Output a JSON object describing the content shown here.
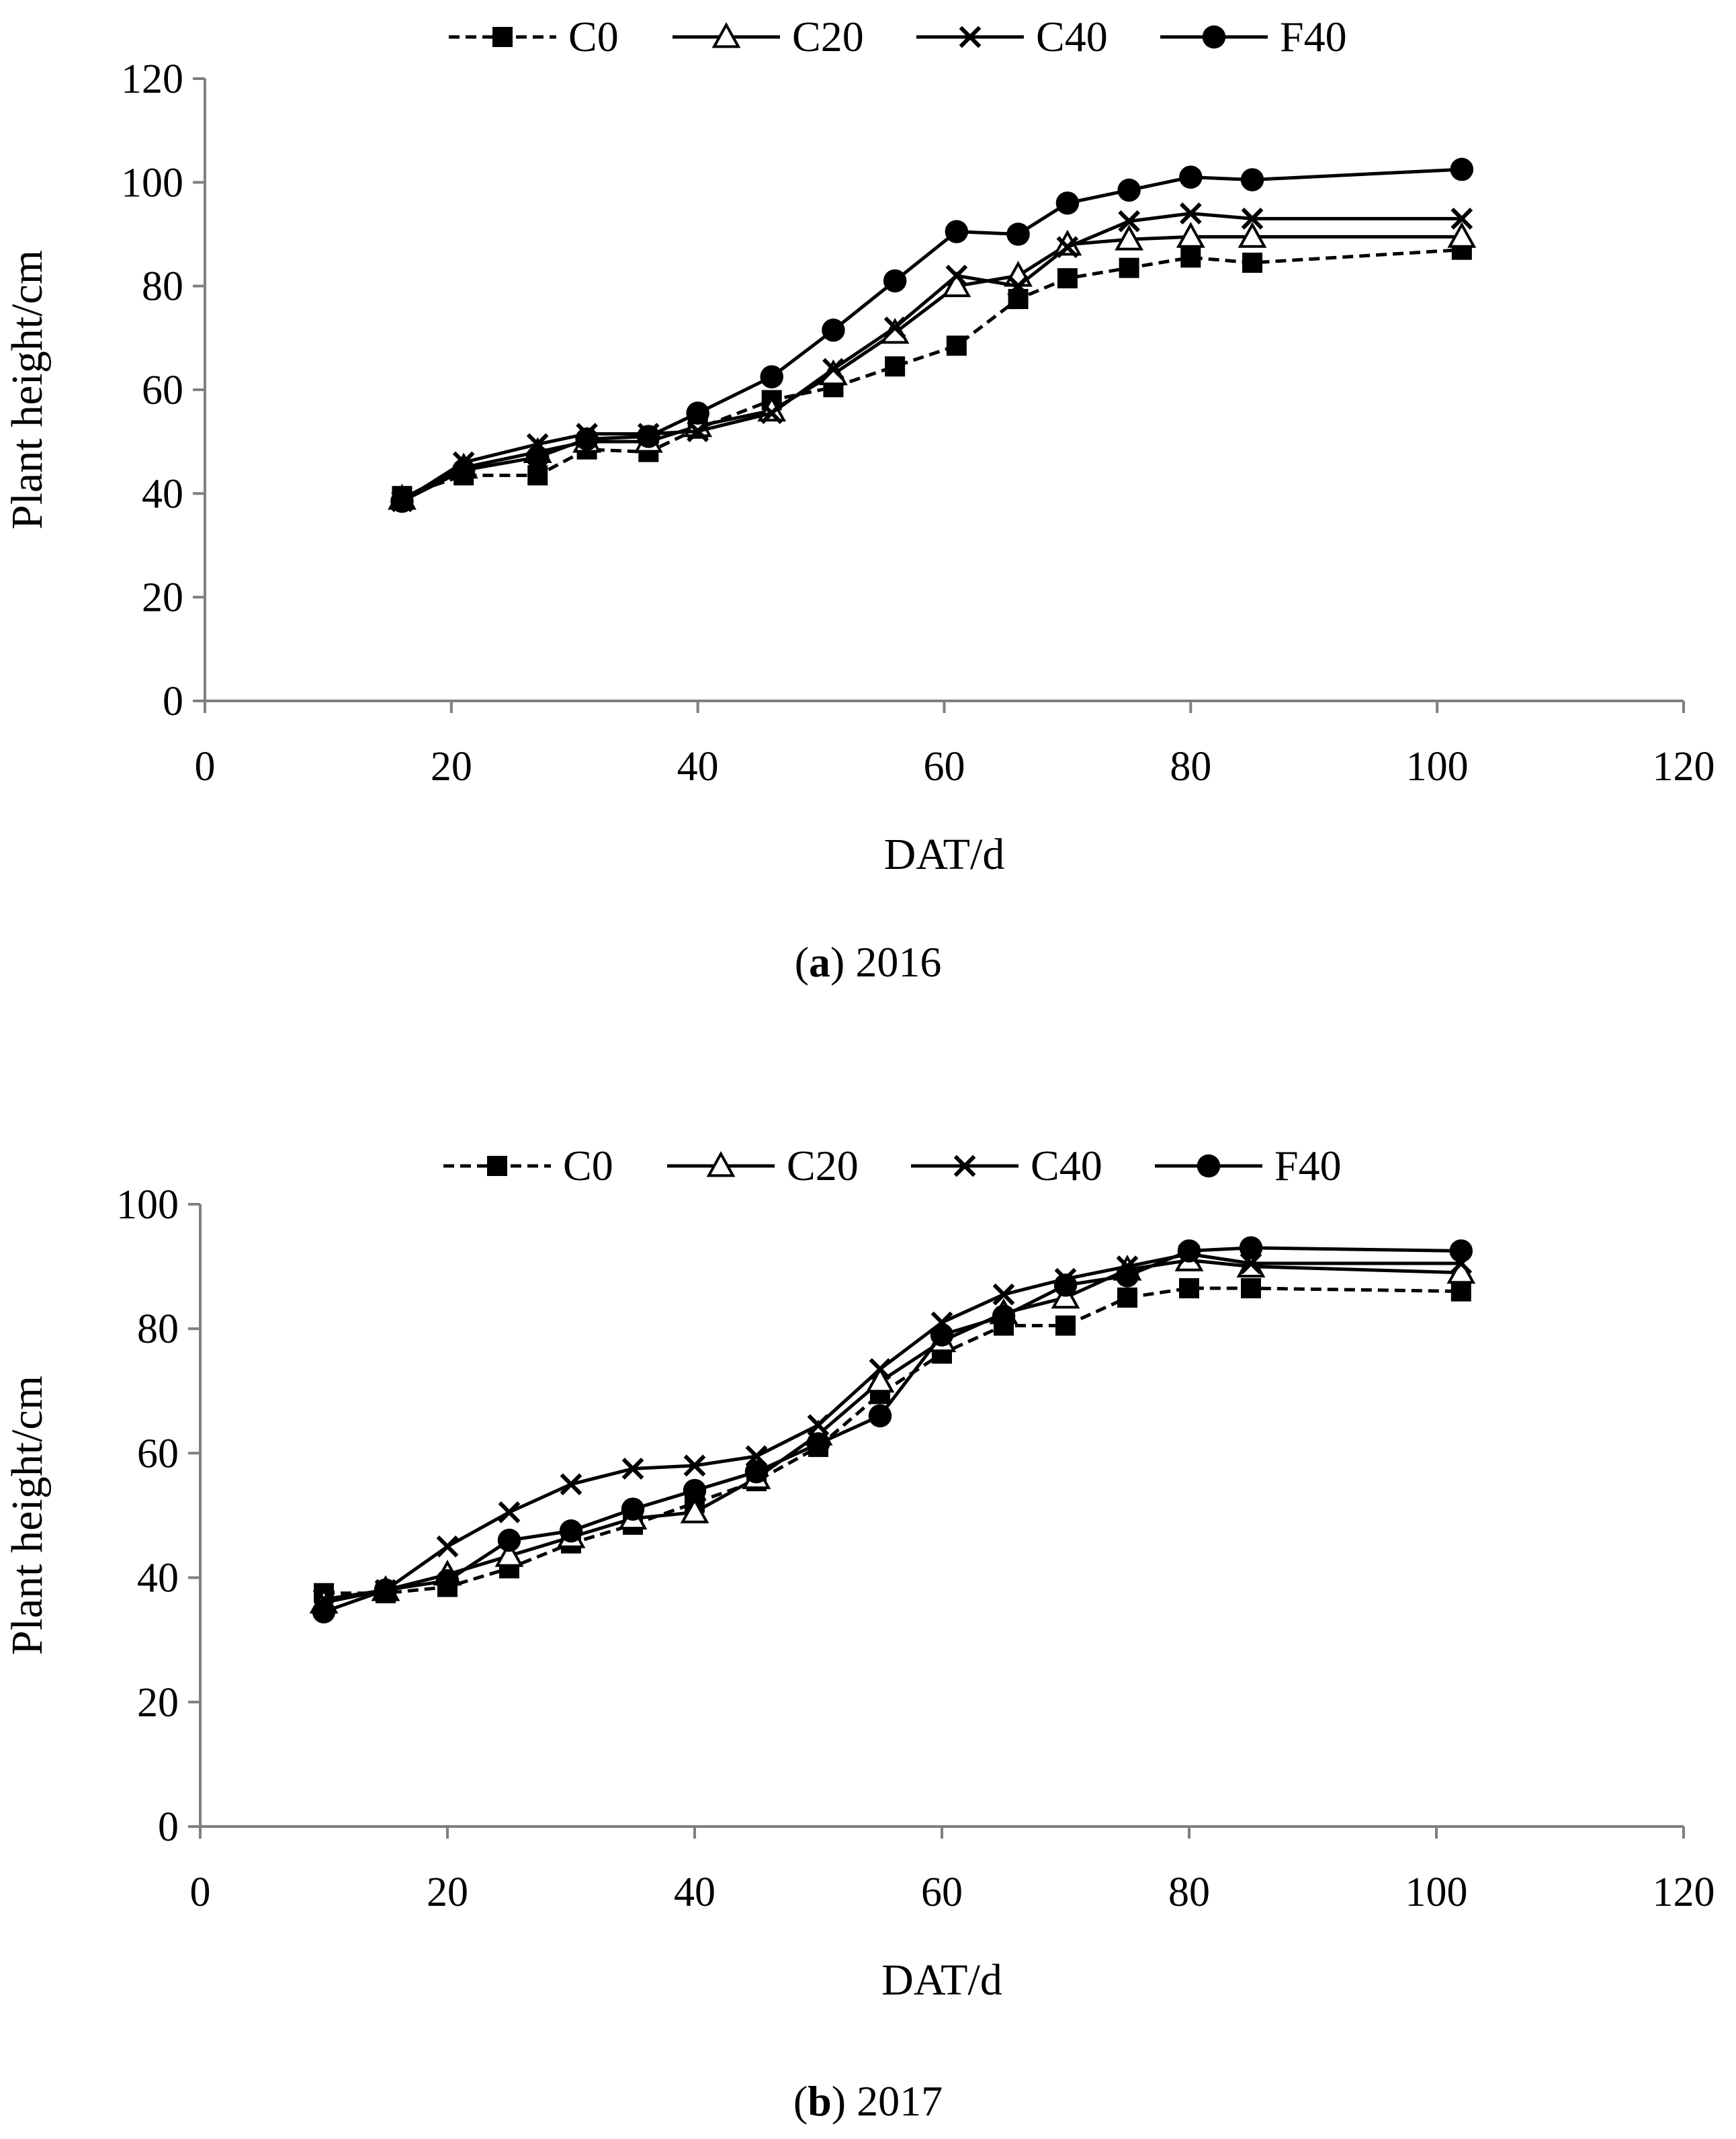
{
  "chart_data": [
    {
      "type": "line",
      "xlabel": "DAT/d",
      "ylabel": "Plant height/cm",
      "xlim": [
        0,
        120
      ],
      "ylim": [
        0,
        120
      ],
      "xticks": [
        0,
        20,
        40,
        60,
        80,
        100,
        120
      ],
      "yticks": [
        0,
        20,
        40,
        60,
        80,
        100,
        120
      ],
      "grid": false,
      "legend": "top",
      "caption": {
        "letter": "a",
        "year": "2016"
      },
      "x": [
        16,
        21,
        27,
        31,
        36,
        40,
        46,
        51,
        56,
        61,
        66,
        70,
        75,
        80,
        85,
        102
      ],
      "series": [
        {
          "name": "C0",
          "marker": "square",
          "dash": true,
          "values": [
            39.5,
            43.5,
            43.5,
            48.5,
            48,
            52.5,
            58,
            60.5,
            64.5,
            68.5,
            77.5,
            81.5,
            83.5,
            85.5,
            84.5,
            87
          ]
        },
        {
          "name": "C20",
          "marker": "triangle",
          "dash": false,
          "values": [
            39,
            45,
            48,
            50,
            50,
            53,
            56,
            63,
            71,
            80,
            82,
            88,
            89,
            89.5,
            89.5,
            89.5
          ]
        },
        {
          "name": "C40",
          "marker": "x",
          "dash": false,
          "values": [
            38.5,
            46,
            49.5,
            51.5,
            51.5,
            52,
            55.5,
            64,
            72,
            82,
            80,
            87.5,
            92.5,
            94,
            93,
            93
          ]
        },
        {
          "name": "F40",
          "marker": "circle",
          "dash": false,
          "values": [
            38.5,
            44.5,
            47,
            50.5,
            51,
            55.5,
            62.5,
            71.5,
            81,
            90.5,
            90,
            96,
            98.5,
            101,
            100.5,
            102.5
          ]
        }
      ]
    },
    {
      "type": "line",
      "xlabel": "DAT/d",
      "ylabel": "Plant height/cm",
      "xlim": [
        0,
        120
      ],
      "ylim": [
        0,
        100
      ],
      "xticks": [
        0,
        20,
        40,
        60,
        80,
        100,
        120
      ],
      "yticks": [
        0,
        20,
        40,
        60,
        80,
        100
      ],
      "grid": false,
      "legend": "top",
      "caption": {
        "letter": "b",
        "year": "2017"
      },
      "x": [
        10,
        15,
        20,
        25,
        30,
        35,
        40,
        45,
        50,
        55,
        60,
        65,
        70,
        75,
        80,
        85,
        102
      ],
      "series": [
        {
          "name": "C0",
          "marker": "square",
          "dash": true,
          "values": [
            37.5,
            37.5,
            38.5,
            41.5,
            45.5,
            48.5,
            52,
            55.5,
            61,
            69.5,
            76,
            80.5,
            80.5,
            85,
            86.5,
            86.5,
            86
          ]
        },
        {
          "name": "C20",
          "marker": "triangle",
          "dash": false,
          "values": [
            36,
            38,
            40.5,
            43.5,
            46.5,
            49.5,
            50.5,
            56,
            63,
            71.5,
            78,
            82.5,
            85,
            89.5,
            91,
            90,
            89
          ]
        },
        {
          "name": "C40",
          "marker": "x",
          "dash": false,
          "values": [
            36.5,
            38,
            45,
            50.5,
            55,
            57.5,
            58,
            59.5,
            64.5,
            73.5,
            81,
            85.5,
            88,
            90,
            92,
            90.5,
            90.5
          ]
        },
        {
          "name": "F40",
          "marker": "circle",
          "dash": false,
          "values": [
            34.5,
            38,
            39.5,
            46,
            47.5,
            51,
            54,
            57,
            61.5,
            66,
            79,
            82,
            87,
            88.5,
            92.5,
            93,
            92.5
          ]
        }
      ]
    }
  ]
}
